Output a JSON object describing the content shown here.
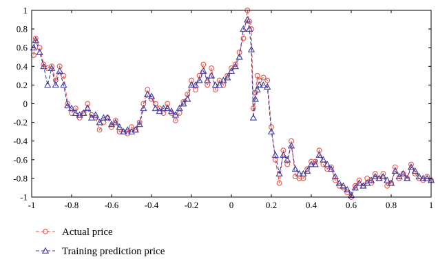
{
  "chart_data": {
    "type": "line",
    "xlim": [
      -1,
      1
    ],
    "ylim": [
      -1,
      1
    ],
    "x_ticks": [
      "-1",
      "-0.8",
      "-0.6",
      "-0.4",
      "-0.2",
      "0",
      "0.2",
      "0.4",
      "0.6",
      "0.8",
      "1"
    ],
    "y_ticks": [
      "1",
      "0.8",
      "0.6",
      "0.4",
      "0.2",
      "0",
      "-0.2",
      "-0.4",
      "-0.6",
      "-0.8",
      "-1"
    ],
    "grid": false,
    "legend_position": "bottom-left",
    "series": [
      {
        "name": "Actual price",
        "color": "#e8524a",
        "marker": "circle",
        "x": [
          -0.99,
          -0.98,
          -0.96,
          -0.94,
          -0.92,
          -0.9,
          -0.88,
          -0.86,
          -0.84,
          -0.82,
          -0.8,
          -0.78,
          -0.76,
          -0.74,
          -0.72,
          -0.7,
          -0.68,
          -0.66,
          -0.64,
          -0.62,
          -0.6,
          -0.58,
          -0.56,
          -0.54,
          -0.52,
          -0.5,
          -0.48,
          -0.46,
          -0.44,
          -0.42,
          -0.4,
          -0.38,
          -0.36,
          -0.34,
          -0.32,
          -0.3,
          -0.28,
          -0.26,
          -0.24,
          -0.22,
          -0.2,
          -0.18,
          -0.16,
          -0.14,
          -0.12,
          -0.1,
          -0.08,
          -0.06,
          -0.04,
          -0.02,
          0.0,
          0.02,
          0.04,
          0.06,
          0.08,
          0.09,
          0.1,
          0.11,
          0.12,
          0.13,
          0.14,
          0.16,
          0.18,
          0.2,
          0.22,
          0.24,
          0.26,
          0.28,
          0.3,
          0.32,
          0.34,
          0.36,
          0.38,
          0.4,
          0.42,
          0.44,
          0.46,
          0.48,
          0.5,
          0.52,
          0.54,
          0.56,
          0.58,
          0.6,
          0.62,
          0.64,
          0.66,
          0.68,
          0.7,
          0.72,
          0.74,
          0.76,
          0.78,
          0.8,
          0.82,
          0.84,
          0.86,
          0.88,
          0.9,
          0.92,
          0.94,
          0.96,
          0.98,
          1.0
        ],
        "y": [
          0.52,
          0.7,
          0.6,
          0.42,
          0.38,
          0.4,
          0.25,
          0.4,
          0.3,
          0.0,
          -0.1,
          -0.05,
          -0.15,
          -0.1,
          0.0,
          -0.12,
          -0.15,
          -0.28,
          -0.2,
          -0.15,
          -0.25,
          -0.18,
          -0.3,
          -0.3,
          -0.32,
          -0.25,
          -0.28,
          -0.2,
          0.0,
          0.15,
          0.05,
          0.0,
          -0.05,
          -0.1,
          0.0,
          -0.1,
          -0.18,
          -0.1,
          0.02,
          0.1,
          0.25,
          0.15,
          0.3,
          0.42,
          0.2,
          0.38,
          0.15,
          0.25,
          0.2,
          0.3,
          0.38,
          0.42,
          0.55,
          0.7,
          1.0,
          0.88,
          0.8,
          -0.05,
          0.12,
          0.3,
          0.25,
          0.28,
          0.25,
          -0.25,
          -0.6,
          -0.85,
          -0.5,
          -0.65,
          -0.4,
          -0.78,
          -0.8,
          -0.8,
          -0.7,
          -0.62,
          -0.62,
          -0.5,
          -0.65,
          -0.7,
          -0.68,
          -0.82,
          -0.88,
          -0.9,
          -0.95,
          -1.0,
          -0.88,
          -0.82,
          -0.88,
          -0.8,
          -0.85,
          -0.75,
          -0.8,
          -0.75,
          -0.88,
          -0.85,
          -0.68,
          -0.8,
          -0.75,
          -0.8,
          -0.65,
          -0.75,
          -0.8,
          -0.82,
          -0.78,
          -0.82
        ]
      },
      {
        "name": "Training prediction price",
        "color": "#3d3a9e",
        "marker": "triangle",
        "x": [
          -0.99,
          -0.98,
          -0.96,
          -0.94,
          -0.92,
          -0.9,
          -0.88,
          -0.86,
          -0.84,
          -0.82,
          -0.8,
          -0.78,
          -0.76,
          -0.74,
          -0.72,
          -0.7,
          -0.68,
          -0.66,
          -0.64,
          -0.62,
          -0.6,
          -0.58,
          -0.56,
          -0.54,
          -0.52,
          -0.5,
          -0.48,
          -0.46,
          -0.44,
          -0.42,
          -0.4,
          -0.38,
          -0.36,
          -0.34,
          -0.32,
          -0.3,
          -0.28,
          -0.26,
          -0.24,
          -0.22,
          -0.2,
          -0.18,
          -0.16,
          -0.14,
          -0.12,
          -0.1,
          -0.08,
          -0.06,
          -0.04,
          -0.02,
          0.0,
          0.02,
          0.04,
          0.06,
          0.08,
          0.09,
          0.1,
          0.11,
          0.12,
          0.13,
          0.14,
          0.16,
          0.18,
          0.2,
          0.22,
          0.24,
          0.26,
          0.28,
          0.3,
          0.32,
          0.34,
          0.36,
          0.38,
          0.4,
          0.42,
          0.44,
          0.46,
          0.48,
          0.5,
          0.52,
          0.54,
          0.56,
          0.58,
          0.6,
          0.62,
          0.64,
          0.66,
          0.68,
          0.7,
          0.72,
          0.74,
          0.76,
          0.78,
          0.8,
          0.82,
          0.84,
          0.86,
          0.88,
          0.9,
          0.92,
          0.94,
          0.96,
          0.98,
          1.0
        ],
        "y": [
          0.6,
          0.68,
          0.55,
          0.4,
          0.2,
          0.38,
          0.2,
          0.35,
          0.2,
          -0.02,
          -0.05,
          -0.1,
          -0.12,
          -0.1,
          -0.05,
          -0.15,
          -0.12,
          -0.2,
          -0.15,
          -0.15,
          -0.22,
          -0.2,
          -0.25,
          -0.3,
          -0.28,
          -0.3,
          -0.28,
          -0.22,
          -0.05,
          0.1,
          0.08,
          -0.05,
          -0.08,
          -0.05,
          -0.05,
          -0.08,
          -0.12,
          -0.05,
          0.0,
          0.05,
          0.2,
          0.2,
          0.25,
          0.35,
          0.25,
          0.3,
          0.2,
          0.2,
          0.25,
          0.28,
          0.35,
          0.4,
          0.5,
          0.8,
          0.9,
          0.8,
          0.58,
          -0.15,
          0.05,
          0.15,
          0.2,
          0.2,
          0.18,
          -0.3,
          -0.55,
          -0.75,
          -0.55,
          -0.6,
          -0.45,
          -0.7,
          -0.75,
          -0.75,
          -0.72,
          -0.65,
          -0.65,
          -0.55,
          -0.6,
          -0.65,
          -0.7,
          -0.78,
          -0.85,
          -0.88,
          -0.92,
          -0.98,
          -0.9,
          -0.85,
          -0.88,
          -0.85,
          -0.82,
          -0.78,
          -0.8,
          -0.78,
          -0.82,
          -0.85,
          -0.72,
          -0.78,
          -0.75,
          -0.8,
          -0.68,
          -0.72,
          -0.78,
          -0.8,
          -0.8,
          -0.82
        ]
      }
    ]
  }
}
